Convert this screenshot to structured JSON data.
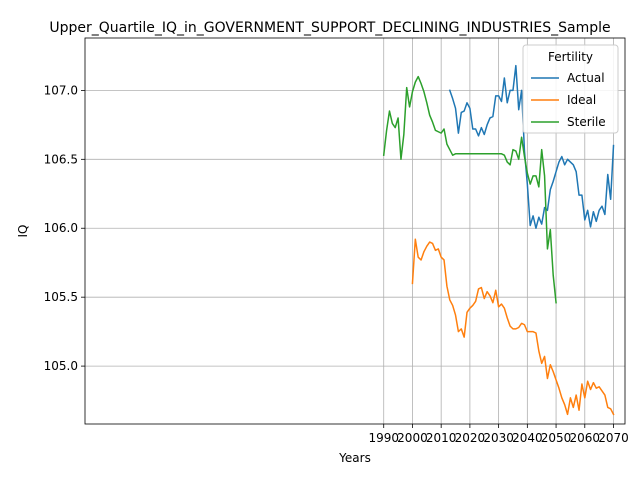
{
  "chart_data": {
    "type": "line",
    "title": "Upper_Quartile_IQ_in_GOVERNMENT_SUPPORT_DECLINING_INDUSTRIES_Sample",
    "xlabel": "Years",
    "ylabel": "IQ",
    "xlim": [
      1886,
      2074
    ],
    "ylim": [
      104.58,
      107.38
    ],
    "xticks": [
      1990,
      2000,
      2010,
      2020,
      2030,
      2040,
      2050,
      2060,
      2070
    ],
    "yticks": [
      105.0,
      105.5,
      106.0,
      106.5,
      107.0
    ],
    "ytick_labels": [
      "105.0",
      "105.5",
      "106.0",
      "106.5",
      "107.0"
    ],
    "grid": true,
    "legend": {
      "title": "Fertility",
      "position": "top-right"
    },
    "series": [
      {
        "name": "Actual",
        "color": "#1f77b4",
        "x": [
          2013,
          2014,
          2015,
          2016,
          2017,
          2018,
          2019,
          2020,
          2021,
          2022,
          2023,
          2024,
          2025,
          2026,
          2027,
          2028,
          2029,
          2030,
          2031,
          2032,
          2033,
          2034,
          2035,
          2036,
          2037,
          2038,
          2039,
          2040,
          2041,
          2042,
          2043,
          2044,
          2045,
          2046,
          2047,
          2048,
          2049,
          2050,
          2051,
          2052,
          2053,
          2054,
          2055,
          2056,
          2057,
          2058,
          2059,
          2060,
          2061,
          2062,
          2063,
          2064,
          2065,
          2066,
          2067,
          2068,
          2069,
          2070
        ],
        "y": [
          107.0,
          106.94,
          106.87,
          106.69,
          106.84,
          106.85,
          106.91,
          106.87,
          106.72,
          106.72,
          106.67,
          106.73,
          106.68,
          106.75,
          106.8,
          106.81,
          106.96,
          106.96,
          106.92,
          107.09,
          106.91,
          107.0,
          107.0,
          107.18,
          106.86,
          107.0,
          106.56,
          106.32,
          106.02,
          106.09,
          106.0,
          106.08,
          106.03,
          106.15,
          106.13,
          106.28,
          106.34,
          106.41,
          106.48,
          106.52,
          106.46,
          106.5,
          106.48,
          106.46,
          106.41,
          106.24,
          106.24,
          106.06,
          106.13,
          106.01,
          106.12,
          106.05,
          106.13,
          106.16,
          106.1,
          106.39,
          106.21,
          106.6
        ]
      },
      {
        "name": "Ideal",
        "color": "#ff7f0e",
        "x": [
          2000,
          2001,
          2002,
          2003,
          2004,
          2005,
          2006,
          2007,
          2008,
          2009,
          2010,
          2011,
          2012,
          2013,
          2014,
          2015,
          2016,
          2017,
          2018,
          2019,
          2020,
          2021,
          2022,
          2023,
          2024,
          2025,
          2026,
          2027,
          2028,
          2029,
          2030,
          2031,
          2032,
          2033,
          2034,
          2035,
          2036,
          2037,
          2038,
          2039,
          2040,
          2041,
          2042,
          2043,
          2044,
          2045,
          2046,
          2047,
          2048,
          2049,
          2050,
          2051,
          2052,
          2053,
          2054,
          2055,
          2056,
          2057,
          2058,
          2059,
          2060,
          2061,
          2062,
          2063,
          2064,
          2065,
          2066,
          2067,
          2068,
          2069,
          2070
        ],
        "y": [
          105.6,
          105.92,
          105.79,
          105.77,
          105.83,
          105.87,
          105.9,
          105.89,
          105.84,
          105.85,
          105.79,
          105.77,
          105.58,
          105.48,
          105.44,
          105.37,
          105.25,
          105.27,
          105.21,
          105.39,
          105.42,
          105.44,
          105.47,
          105.56,
          105.57,
          105.49,
          105.54,
          105.51,
          105.46,
          105.55,
          105.43,
          105.45,
          105.42,
          105.35,
          105.29,
          105.27,
          105.27,
          105.28,
          105.31,
          105.3,
          105.25,
          105.25,
          105.25,
          105.24,
          105.11,
          105.02,
          105.07,
          104.91,
          105.01,
          104.96,
          104.9,
          104.84,
          104.77,
          104.72,
          104.65,
          104.77,
          104.7,
          104.79,
          104.68,
          104.87,
          104.77,
          104.89,
          104.83,
          104.88,
          104.84,
          104.85,
          104.82,
          104.79,
          104.7,
          104.69,
          104.65
        ]
      },
      {
        "name": "Sterile",
        "color": "#2ca02c",
        "x": [
          1990,
          1991,
          1992,
          1993,
          1994,
          1995,
          1996,
          1997,
          1998,
          1999,
          2000,
          2001,
          2002,
          2003,
          2004,
          2005,
          2006,
          2007,
          2008,
          2009,
          2010,
          2011,
          2012,
          2013,
          2014,
          2015,
          2016,
          2017,
          2018,
          2019,
          2020,
          2021,
          2022,
          2023,
          2024,
          2025,
          2026,
          2027,
          2028,
          2029,
          2030,
          2031,
          2032,
          2033,
          2034,
          2035,
          2036,
          2037,
          2038,
          2039,
          2040,
          2041,
          2042,
          2043,
          2044,
          2045,
          2046,
          2047,
          2048,
          2049,
          2050
        ],
        "y": [
          106.53,
          106.71,
          106.85,
          106.76,
          106.73,
          106.8,
          106.5,
          106.68,
          107.02,
          106.88,
          106.99,
          107.06,
          107.1,
          107.05,
          106.99,
          106.91,
          106.82,
          106.77,
          106.71,
          106.7,
          106.69,
          106.72,
          106.61,
          106.57,
          106.53,
          106.54,
          106.54,
          106.54,
          106.54,
          106.54,
          106.54,
          106.54,
          106.54,
          106.54,
          106.54,
          106.54,
          106.54,
          106.54,
          106.54,
          106.54,
          106.54,
          106.54,
          106.53,
          106.48,
          106.46,
          106.57,
          106.56,
          106.5,
          106.66,
          106.52,
          106.4,
          106.32,
          106.38,
          106.38,
          106.3,
          106.57,
          106.38,
          105.85,
          105.99,
          105.66,
          105.46
        ]
      }
    ]
  }
}
